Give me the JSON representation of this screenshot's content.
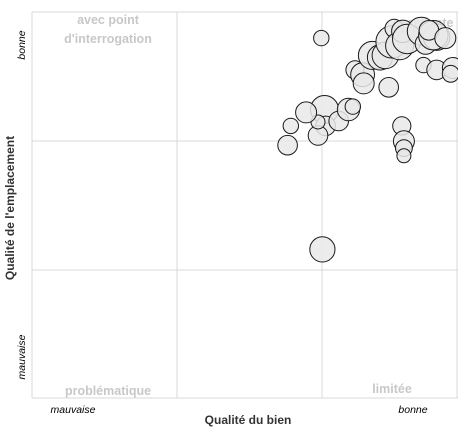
{
  "chart_data": {
    "type": "scatter",
    "xlabel": "Qualité du bien",
    "ylabel": "Qualité de l'emplacement",
    "xlim": [
      0,
      4
    ],
    "ylim": [
      0,
      4
    ],
    "x_ticks": {
      "low": "mauvaise",
      "high": "bonne"
    },
    "y_ticks": {
      "low": "mauvaise",
      "high": "bonne"
    },
    "grid": true,
    "quadrant_labels": {
      "top_left": [
        "avec point",
        "d'interrogation"
      ],
      "top_right": [
        "excellente"
      ],
      "bottom_left": [
        "problématique"
      ],
      "bottom_right": [
        "limitée"
      ]
    },
    "points": [
      {
        "x": 2.69,
        "y": 2.99,
        "size": 2.0
      },
      {
        "x": 2.7,
        "y": 2.82,
        "size": 1.4
      },
      {
        "x": 2.82,
        "y": 2.87,
        "size": 1.4
      },
      {
        "x": 2.97,
        "y": 3.4,
        "size": 1.3
      },
      {
        "x": 2.91,
        "y": 2.99,
        "size": 1.6
      },
      {
        "x": 2.95,
        "y": 3.02,
        "size": 1.1
      },
      {
        "x": 3.04,
        "y": 3.35,
        "size": 1.7
      },
      {
        "x": 3.05,
        "y": 3.26,
        "size": 1.5
      },
      {
        "x": 3.13,
        "y": 3.55,
        "size": 2.0
      },
      {
        "x": 3.2,
        "y": 3.53,
        "size": 1.8
      },
      {
        "x": 3.25,
        "y": 3.55,
        "size": 1.9
      },
      {
        "x": 3.31,
        "y": 3.69,
        "size": 2.3
      },
      {
        "x": 3.33,
        "y": 3.83,
        "size": 1.3
      },
      {
        "x": 3.38,
        "y": 3.65,
        "size": 2.0
      },
      {
        "x": 3.28,
        "y": 3.22,
        "size": 1.4
      },
      {
        "x": 3.41,
        "y": 3.8,
        "size": 1.6
      },
      {
        "x": 3.45,
        "y": 3.72,
        "size": 2.1
      },
      {
        "x": 3.58,
        "y": 3.8,
        "size": 2.0
      },
      {
        "x": 3.62,
        "y": 3.67,
        "size": 1.5
      },
      {
        "x": 3.72,
        "y": 3.74,
        "size": 1.9
      },
      {
        "x": 3.69,
        "y": 3.76,
        "size": 2.1
      },
      {
        "x": 3.65,
        "y": 3.81,
        "size": 1.4
      },
      {
        "x": 3.8,
        "y": 3.73,
        "size": 1.5
      },
      {
        "x": 3.6,
        "y": 3.45,
        "size": 1.1
      },
      {
        "x": 3.72,
        "y": 3.4,
        "size": 1.4
      },
      {
        "x": 3.87,
        "y": 3.42,
        "size": 1.5
      },
      {
        "x": 3.85,
        "y": 3.36,
        "size": 1.2
      },
      {
        "x": 3.4,
        "y": 2.82,
        "size": 1.3
      },
      {
        "x": 3.42,
        "y": 2.66,
        "size": 1.5
      },
      {
        "x": 3.42,
        "y": 2.59,
        "size": 1.2
      },
      {
        "x": 3.42,
        "y": 2.51,
        "size": 1.0
      },
      {
        "x": 2.63,
        "y": 2.72,
        "size": 1.4
      },
      {
        "x": 2.63,
        "y": 2.86,
        "size": 1.0
      },
      {
        "x": 2.52,
        "y": 2.96,
        "size": 1.5
      },
      {
        "x": 2.35,
        "y": 2.62,
        "size": 1.4
      },
      {
        "x": 2.38,
        "y": 2.82,
        "size": 1.1
      },
      {
        "x": 2.66,
        "y": 3.73,
        "size": 1.1
      },
      {
        "x": 2.67,
        "y": 1.54,
        "size": 1.8
      }
    ]
  },
  "colors": {
    "grid": "#d9d9d9",
    "quadrant_label": "#c8c8c8",
    "bubble_fill": "#e9e9e9",
    "bubble_stroke": "#1a1a1a"
  }
}
